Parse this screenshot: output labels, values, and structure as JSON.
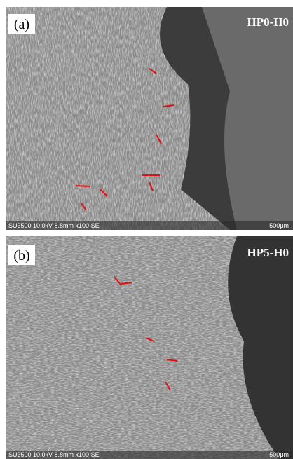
{
  "panels": [
    {
      "label": "(a)",
      "sample": "HP0-H0",
      "footer": "SU3500 10.0kV 8.8mm x100 SE",
      "scale": "500μm"
    },
    {
      "label": "(b)",
      "sample": "HP5-H0",
      "footer": "SU3500 10.0kV 8.8mm x100 SE",
      "scale": "500μm"
    }
  ]
}
